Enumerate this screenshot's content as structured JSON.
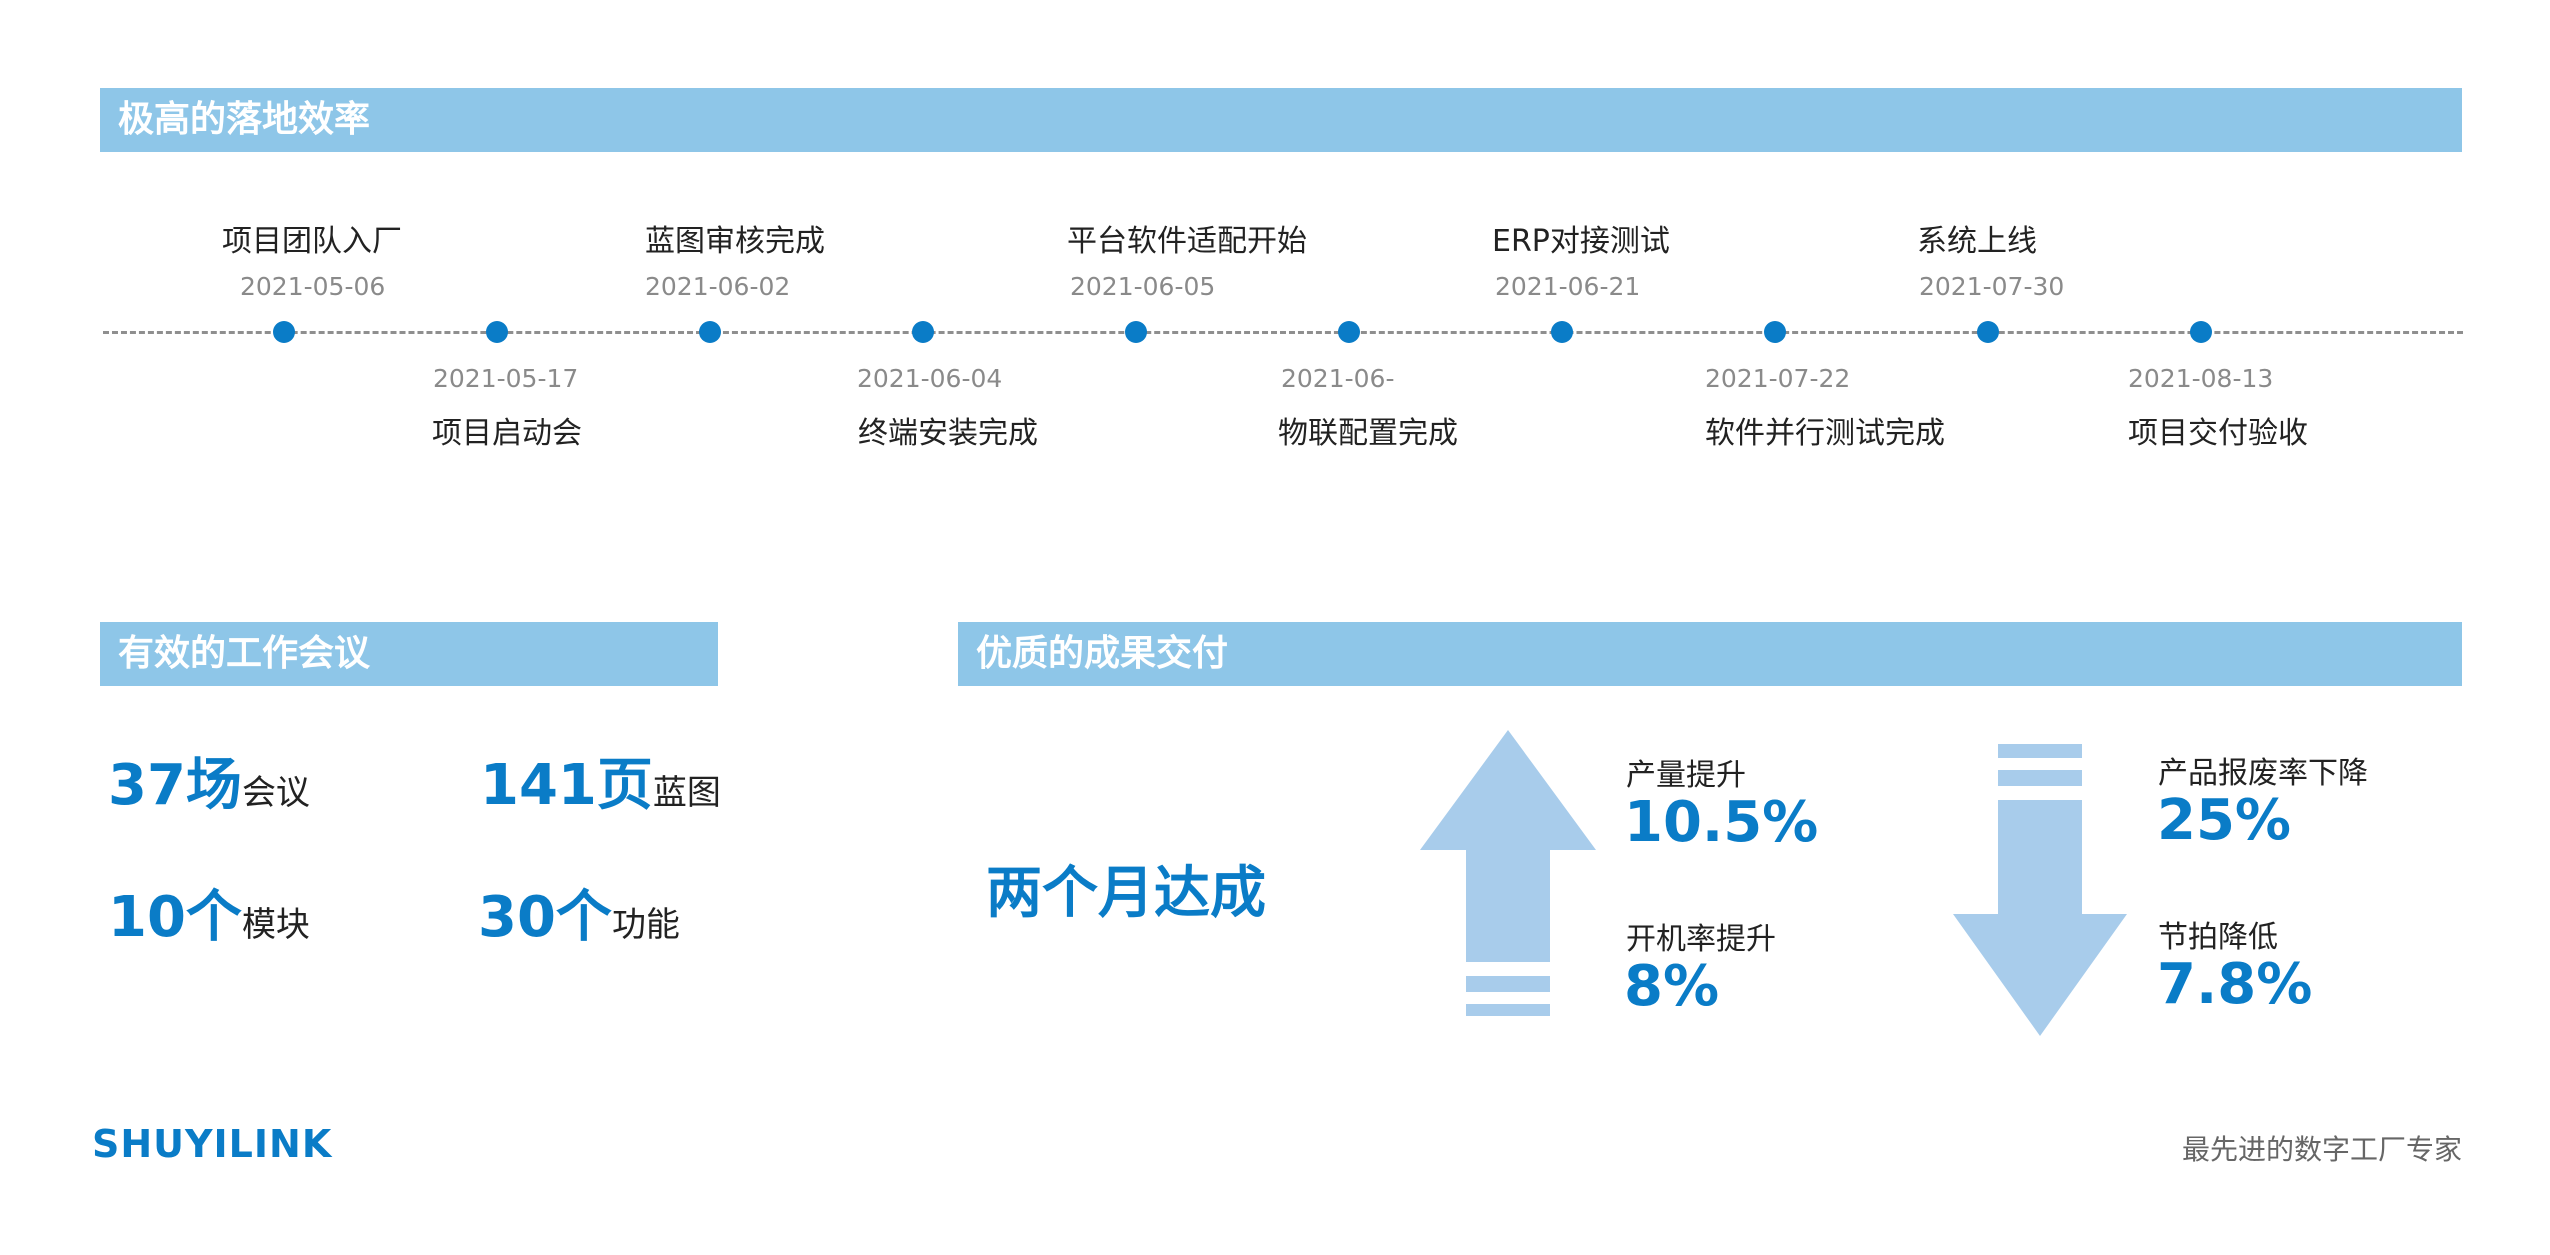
{
  "sections": {
    "efficiency": "极高的落地效率",
    "meetings": "有效的工作会议",
    "results": "优质的成果交付"
  },
  "timeline": {
    "upper": [
      {
        "title": "项目团队入厂",
        "date": "2021-05-06"
      },
      {
        "title": "蓝图审核完成",
        "date": "2021-06-02"
      },
      {
        "title": "平台软件适配开始",
        "date": "2021-06-05"
      },
      {
        "title": "ERP对接测试",
        "date": "2021-06-21"
      },
      {
        "title": "系统上线",
        "date": "2021-07-30"
      }
    ],
    "lower": [
      {
        "title": "项目启动会",
        "date": "2021-05-17"
      },
      {
        "title": "终端安装完成",
        "date": "2021-06-04"
      },
      {
        "title": "物联配置完成",
        "date": "2021-06-"
      },
      {
        "title": "软件并行测试完成",
        "date": "2021-07-22"
      },
      {
        "title": "项目交付验收",
        "date": "2021-08-13"
      }
    ]
  },
  "meetings": [
    {
      "num": "37场",
      "unit": "会议"
    },
    {
      "num": "141页",
      "unit": "蓝图"
    },
    {
      "num": "10个",
      "unit": "模块"
    },
    {
      "num": "30个",
      "unit": "功能"
    }
  ],
  "results": {
    "headline": "两个月达成",
    "up": [
      {
        "label": "产量提升",
        "value": "10.5%"
      },
      {
        "label": "开机率提升",
        "value": "8%"
      }
    ],
    "down": [
      {
        "label": "产品报废率下降",
        "value": "25%"
      },
      {
        "label": "节拍降低",
        "value": "7.8%"
      }
    ]
  },
  "footer": {
    "logo": "SHUYILINK",
    "tagline": "最先进的数字工厂专家"
  },
  "colors": {
    "accent": "#0a7cc7",
    "header_bar": "#8ec6e8",
    "arrow": "#a8cceb"
  }
}
